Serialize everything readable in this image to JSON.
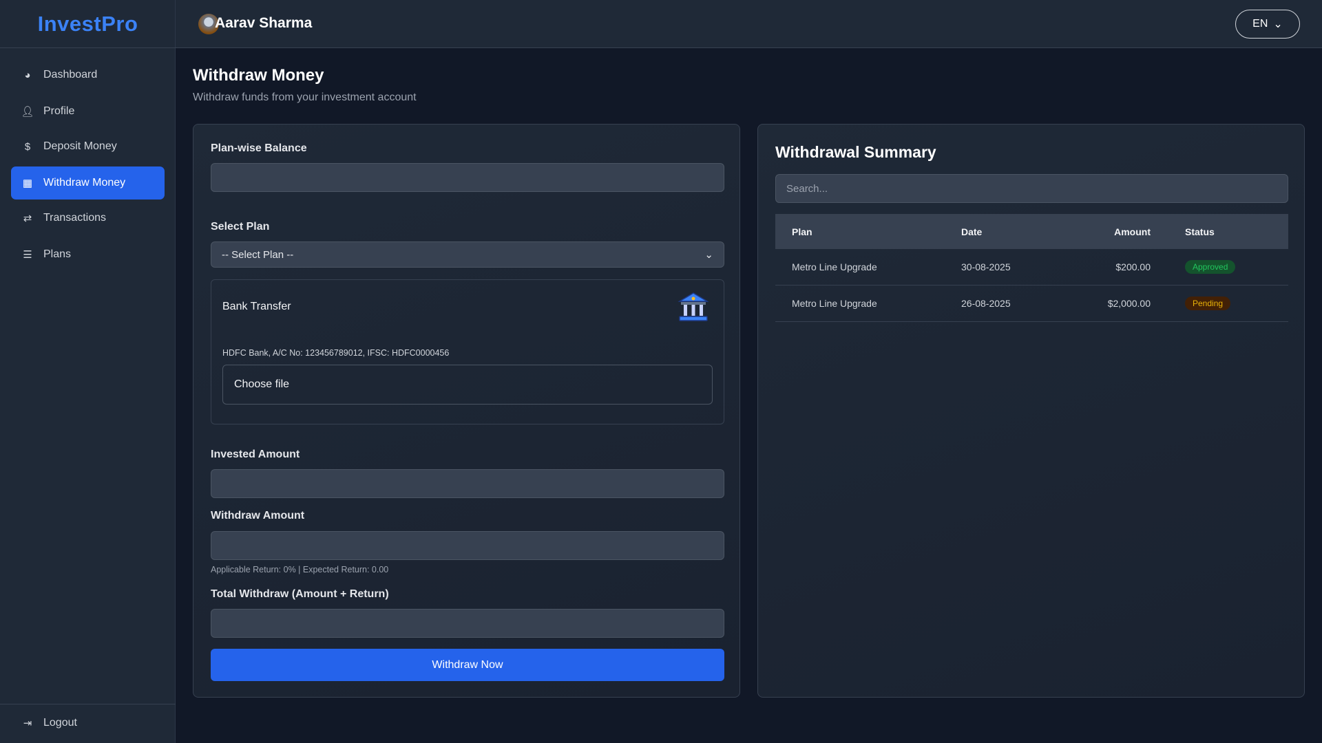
{
  "brand": {
    "logo": "InvestPro"
  },
  "sidebar": {
    "items": [
      {
        "label": "Dashboard",
        "icon": "dashboard-gauge-icon"
      },
      {
        "label": "Profile",
        "icon": "user-icon"
      },
      {
        "label": "Deposit Money",
        "icon": "hand-dollar-icon"
      },
      {
        "label": "Withdraw Money",
        "icon": "money-chart-icon",
        "active": true
      },
      {
        "label": "Transactions",
        "icon": "money-exchange-icon"
      },
      {
        "label": "Plans",
        "icon": "checklist-icon"
      }
    ],
    "logout": "Logout"
  },
  "header": {
    "user_name": "Aarav Sharma",
    "language": "EN"
  },
  "page": {
    "title": "Withdraw Money",
    "subtitle": "Withdraw funds from your investment account"
  },
  "form": {
    "plan_balance_label": "Plan-wise Balance",
    "plan_balance_value": "",
    "select_plan_label": "Select Plan",
    "select_plan_value": "-- Select Plan --",
    "bank": {
      "title": "Bank Transfer",
      "info": "HDFC Bank, A/C No: 123456789012, IFSC: HDFC0000456",
      "file_label": "Choose file"
    },
    "invested_label": "Invested Amount",
    "invested_value": "",
    "withdraw_label": "Withdraw Amount",
    "withdraw_value": "",
    "helper": "Applicable Return: 0% | Expected Return: 0.00",
    "total_label": "Total Withdraw (Amount + Return)",
    "total_value": "",
    "submit": "Withdraw Now"
  },
  "summary": {
    "title": "Withdrawal Summary",
    "search_placeholder": "Search...",
    "columns": [
      "Plan",
      "Date",
      "Amount",
      "Status"
    ],
    "rows": [
      {
        "plan": "Metro Line Upgrade",
        "date": "30-08-2025",
        "amount": "$200.00",
        "status": "Approved"
      },
      {
        "plan": "Metro Line Upgrade",
        "date": "26-08-2025",
        "amount": "$2,000.00",
        "status": "Pending"
      }
    ]
  },
  "colors": {
    "accent": "#2563eb",
    "approved_text": "#22c55e",
    "approved_bg": "#14532d",
    "pending_text": "#eab308",
    "pending_bg": "#422006"
  }
}
